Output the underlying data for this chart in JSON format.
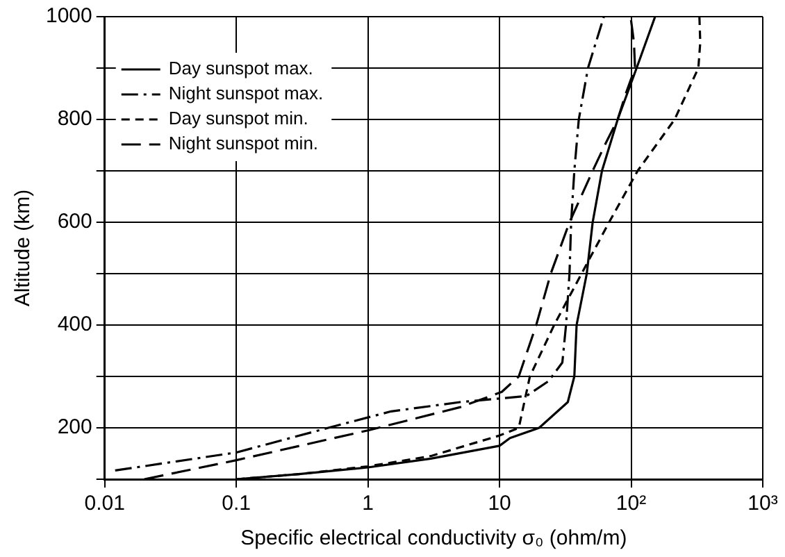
{
  "chart_data": {
    "type": "line",
    "xlabel": "Specific electrical conductivity σ₀ (ohm/m)",
    "ylabel": "Altitude (km)",
    "log": "x",
    "xlim": [
      0.01,
      1000
    ],
    "xticks": [
      0.01,
      0.1,
      1,
      10,
      {
        "value": 100,
        "label": "10²"
      },
      {
        "value": 1000,
        "label": "10³"
      }
    ],
    "ylim": [
      100,
      1000
    ],
    "yticks": [
      {
        "value": 100,
        "label": null
      },
      200,
      {
        "value": 300,
        "label": null
      },
      400,
      {
        "value": 500,
        "label": null
      },
      600,
      {
        "value": 700,
        "label": null
      },
      800,
      {
        "value": 900,
        "label": null
      },
      1000
    ],
    "grid": true,
    "legend": "top left",
    "marker": "none",
    "series": [
      {
        "name": "Day sunspot max.",
        "color": "#000000",
        "line_style": "solid",
        "x": [
          0.1,
          0.3,
          1,
          3,
          10,
          12,
          20,
          33,
          37,
          38.5,
          46,
          51,
          60,
          79,
          110,
          152
        ],
        "values": [
          100,
          110,
          123,
          140,
          165,
          180,
          200,
          250,
          300,
          400,
          500,
          600,
          700,
          800,
          900,
          1000
        ]
      },
      {
        "name": "Night sunspot max.",
        "color": "#000000",
        "line_style": "dashdot",
        "x": [
          0.012,
          0.1,
          0.5,
          1.5,
          5,
          10,
          16,
          23.6,
          30,
          32,
          34,
          35,
          37,
          40,
          47,
          62
        ],
        "values": [
          117,
          152,
          200,
          232,
          250,
          257,
          262,
          291,
          327,
          400,
          500,
          600,
          700,
          800,
          900,
          1000
        ]
      },
      {
        "name": "Day sunspot min.",
        "color": "#000000",
        "line_style": "dashed",
        "x": [
          0.1,
          0.3,
          1,
          3,
          10,
          14,
          17,
          26,
          42,
          68,
          112,
          214,
          324,
          335,
          330
        ],
        "values": [
          100,
          110,
          125,
          145,
          185,
          200,
          300,
          400,
          500,
          600,
          700,
          800,
          900,
          950,
          1000
        ]
      },
      {
        "name": "Night sunspot min.",
        "color": "#000000",
        "line_style": "longdash",
        "x": [
          0.02,
          0.1,
          1,
          5,
          10.4,
          14,
          19,
          24.5,
          34,
          51,
          63,
          79,
          91,
          107,
          105,
          99
        ],
        "values": [
          100,
          137,
          195,
          240,
          270,
          300,
          400,
          500,
          600,
          700,
          750,
          800,
          850,
          900,
          950,
          1000
        ]
      }
    ]
  }
}
